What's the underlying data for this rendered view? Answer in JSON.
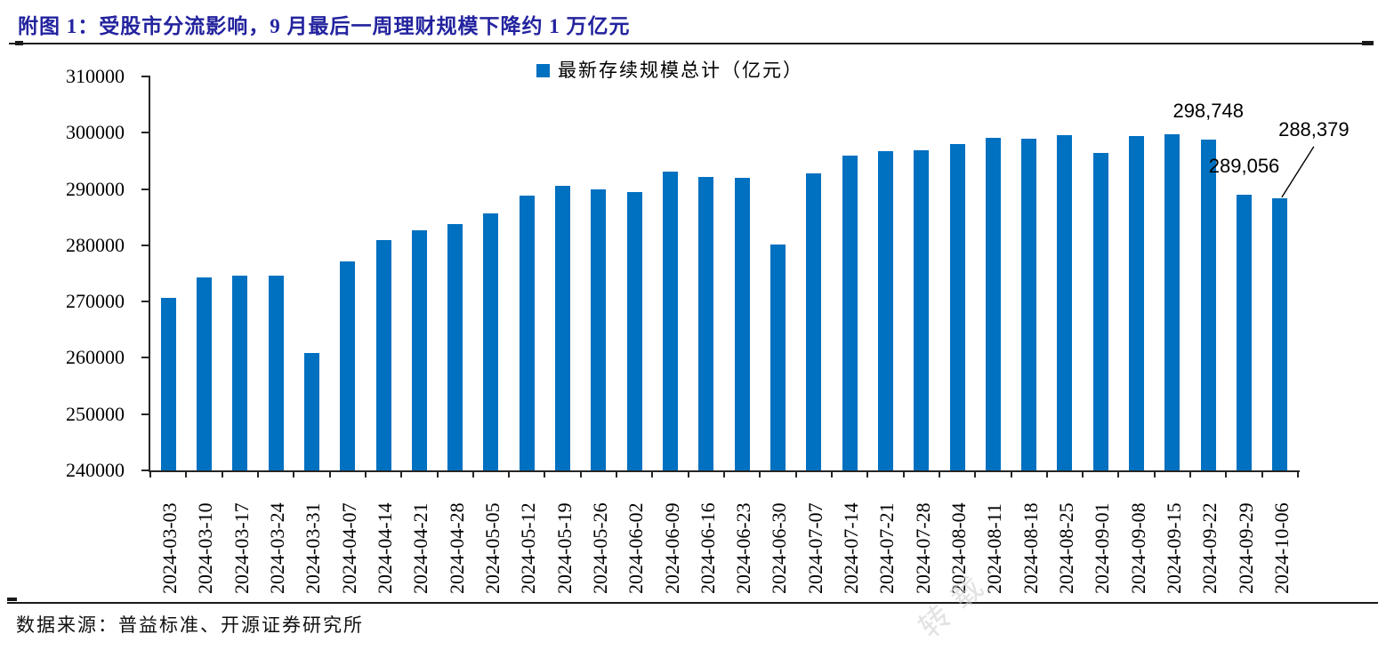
{
  "header": {
    "title": "附图 1：受股市分流影响，9 月最后一周理财规模下降约 1 万亿元"
  },
  "footer": {
    "source": "数据来源：普益标准、开源证券研究所",
    "watermark": "转载"
  },
  "colors": {
    "bar": "#0070C0",
    "title_text": "#23239F",
    "axis_line": "#262626"
  },
  "chart_data": {
    "type": "bar",
    "legend": "最新存续规模总计（亿元）",
    "legend_position": "top-center",
    "grid": false,
    "xlabel": "",
    "ylabel": "",
    "ylim": [
      240000,
      310000
    ],
    "ytick_step": 10000,
    "categories": [
      "2024-03-03",
      "2024-03-10",
      "2024-03-17",
      "2024-03-24",
      "2024-03-31",
      "2024-04-07",
      "2024-04-14",
      "2024-04-21",
      "2024-04-28",
      "2024-05-05",
      "2024-05-12",
      "2024-05-19",
      "2024-05-26",
      "2024-06-02",
      "2024-06-09",
      "2024-06-16",
      "2024-06-23",
      "2024-06-30",
      "2024-07-07",
      "2024-07-14",
      "2024-07-21",
      "2024-07-28",
      "2024-08-04",
      "2024-08-11",
      "2024-08-18",
      "2024-08-25",
      "2024-09-01",
      "2024-09-08",
      "2024-09-15",
      "2024-09-22",
      "2024-09-29",
      "2024-10-06"
    ],
    "values": [
      270700,
      274300,
      274600,
      274600,
      260900,
      277200,
      280900,
      282700,
      283800,
      285700,
      288800,
      290600,
      290000,
      289400,
      293100,
      292200,
      292000,
      280200,
      292700,
      296000,
      296800,
      296900,
      298000,
      299100,
      299000,
      299600,
      296400,
      299400,
      299700,
      298748,
      289056,
      288379
    ],
    "annotations": [
      {
        "category": "2024-09-22",
        "label": "298,748",
        "placement": "above"
      },
      {
        "category": "2024-09-29",
        "label": "289,056",
        "placement": "above"
      },
      {
        "category": "2024-10-06",
        "label": "288,379",
        "placement": "callout-top-right",
        "leader_line": true
      }
    ]
  }
}
